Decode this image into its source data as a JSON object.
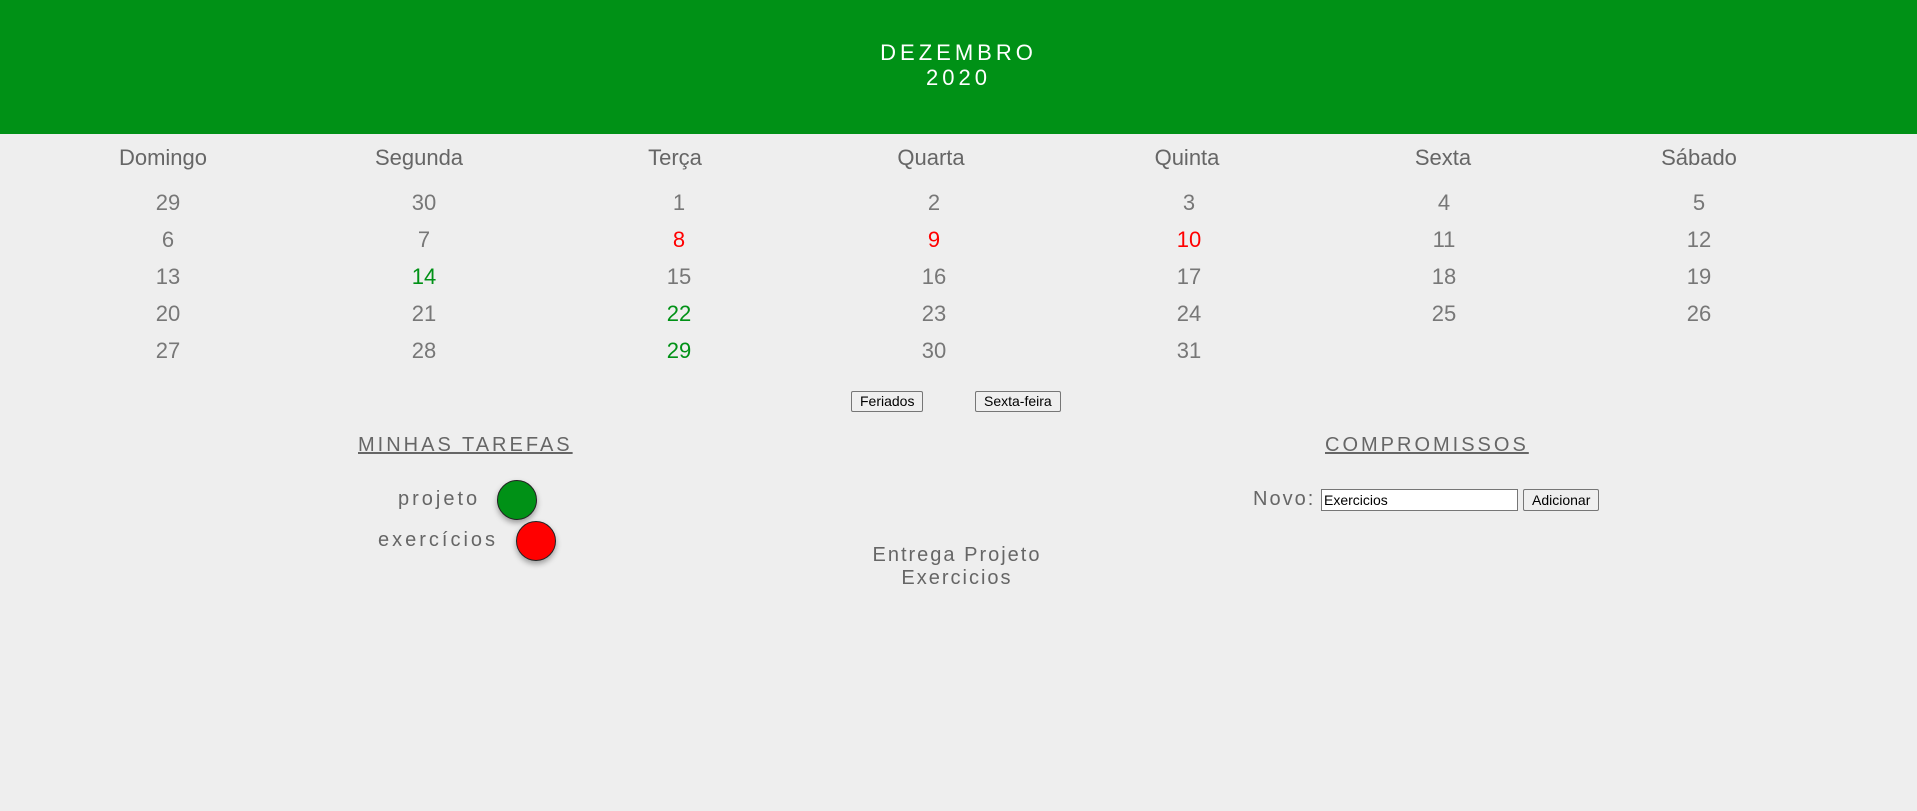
{
  "header": {
    "month": "DEZEMBRO",
    "year": "2020",
    "background": "#009116"
  },
  "weekdays": [
    "Domingo",
    "Segunda",
    "Terça",
    "Quarta",
    "Quinta",
    "Sexta",
    "Sábado"
  ],
  "days": [
    [
      {
        "n": "29",
        "s": ""
      },
      {
        "n": "30",
        "s": ""
      },
      {
        "n": "1",
        "s": ""
      },
      {
        "n": "2",
        "s": ""
      },
      {
        "n": "3",
        "s": ""
      },
      {
        "n": "4",
        "s": ""
      },
      {
        "n": "5",
        "s": ""
      }
    ],
    [
      {
        "n": "6",
        "s": ""
      },
      {
        "n": "7",
        "s": ""
      },
      {
        "n": "8",
        "s": "holiday"
      },
      {
        "n": "9",
        "s": "holiday"
      },
      {
        "n": "10",
        "s": "holiday"
      },
      {
        "n": "11",
        "s": ""
      },
      {
        "n": "12",
        "s": ""
      }
    ],
    [
      {
        "n": "13",
        "s": ""
      },
      {
        "n": "14",
        "s": "friday"
      },
      {
        "n": "15",
        "s": ""
      },
      {
        "n": "16",
        "s": ""
      },
      {
        "n": "17",
        "s": ""
      },
      {
        "n": "18",
        "s": ""
      },
      {
        "n": "19",
        "s": ""
      }
    ],
    [
      {
        "n": "20",
        "s": ""
      },
      {
        "n": "21",
        "s": ""
      },
      {
        "n": "22",
        "s": "friday"
      },
      {
        "n": "23",
        "s": ""
      },
      {
        "n": "24",
        "s": ""
      },
      {
        "n": "25",
        "s": ""
      },
      {
        "n": "26",
        "s": ""
      }
    ],
    [
      {
        "n": "27",
        "s": ""
      },
      {
        "n": "28",
        "s": ""
      },
      {
        "n": "29",
        "s": "friday"
      },
      {
        "n": "30",
        "s": ""
      },
      {
        "n": "31",
        "s": ""
      }
    ]
  ],
  "buttons": {
    "holidays": "Feriados",
    "friday": "Sexta-feira"
  },
  "tasks": {
    "title": "MINHAS TAREFAS",
    "items": [
      {
        "label": "projeto",
        "color": "#009116"
      },
      {
        "label": "exercícios",
        "color": "#ff0000"
      }
    ]
  },
  "appointments": {
    "title": "COMPROMISSOS",
    "items": [
      "Entrega Projeto",
      "Exercicios"
    ],
    "new_label": "Novo:",
    "input_value": "Exercicios",
    "add_button": "Adicionar"
  },
  "colors": {
    "holiday": "#ff0000",
    "friday": "#009116",
    "text": "#666666"
  }
}
